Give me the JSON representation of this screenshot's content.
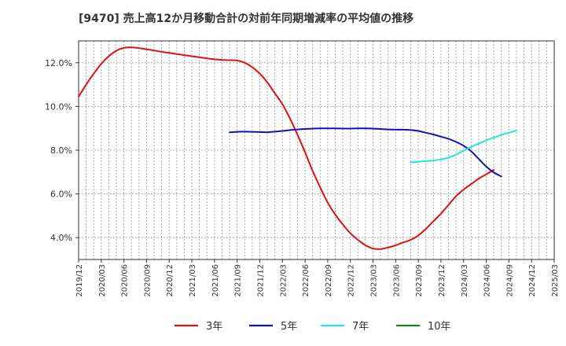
{
  "chart_data": {
    "type": "line",
    "title": "[9470]  売上高12か月移動合計の対前年同期増減率の平均値の推移",
    "xlabel": "",
    "ylabel": "",
    "y_unit": "%",
    "ylim": [
      3.0,
      13.0
    ],
    "y_ticks": [
      "4.0%",
      "6.0%",
      "8.0%",
      "10.0%",
      "12.0%"
    ],
    "x_ticks": [
      "2019/12",
      "2020/03",
      "2020/06",
      "2020/09",
      "2020/12",
      "2021/03",
      "2021/06",
      "2021/09",
      "2021/12",
      "2022/03",
      "2022/06",
      "2022/09",
      "2022/12",
      "2023/03",
      "2023/06",
      "2023/09",
      "2023/12",
      "2024/03",
      "2024/06",
      "2024/09",
      "2024/12",
      "2025/03"
    ],
    "grid": "dashed, both axes",
    "legend_position": "bottom",
    "series": [
      {
        "name": "3年",
        "color": "#dd1111",
        "points": [
          [
            "2019/12",
            10.45
          ],
          [
            "2020/01",
            11.0
          ],
          [
            "2020/02",
            11.5
          ],
          [
            "2020/03",
            11.95
          ],
          [
            "2020/04",
            12.3
          ],
          [
            "2020/05",
            12.55
          ],
          [
            "2020/06",
            12.68
          ],
          [
            "2020/07",
            12.7
          ],
          [
            "2020/08",
            12.67
          ],
          [
            "2020/09",
            12.62
          ],
          [
            "2020/10",
            12.56
          ],
          [
            "2020/11",
            12.5
          ],
          [
            "2020/12",
            12.45
          ],
          [
            "2021/01",
            12.4
          ],
          [
            "2021/02",
            12.35
          ],
          [
            "2021/03",
            12.3
          ],
          [
            "2021/04",
            12.25
          ],
          [
            "2021/05",
            12.2
          ],
          [
            "2021/06",
            12.16
          ],
          [
            "2021/07",
            12.13
          ],
          [
            "2021/08",
            12.12
          ],
          [
            "2021/09",
            12.1
          ],
          [
            "2021/10",
            12.0
          ],
          [
            "2021/11",
            11.8
          ],
          [
            "2021/12",
            11.5
          ],
          [
            "2022/01",
            11.1
          ],
          [
            "2022/02",
            10.6
          ],
          [
            "2022/03",
            10.1
          ],
          [
            "2022/04",
            9.45
          ],
          [
            "2022/05",
            8.7
          ],
          [
            "2022/06",
            7.9
          ],
          [
            "2022/07",
            7.05
          ],
          [
            "2022/08",
            6.3
          ],
          [
            "2022/09",
            5.6
          ],
          [
            "2022/10",
            5.05
          ],
          [
            "2022/11",
            4.6
          ],
          [
            "2022/12",
            4.2
          ],
          [
            "2023/01",
            3.9
          ],
          [
            "2023/02",
            3.65
          ],
          [
            "2023/03",
            3.5
          ],
          [
            "2023/04",
            3.48
          ],
          [
            "2023/05",
            3.55
          ],
          [
            "2023/06",
            3.65
          ],
          [
            "2023/07",
            3.78
          ],
          [
            "2023/08",
            3.9
          ],
          [
            "2023/09",
            4.1
          ],
          [
            "2023/10",
            4.4
          ],
          [
            "2023/11",
            4.75
          ],
          [
            "2023/12",
            5.1
          ],
          [
            "2024/01",
            5.5
          ],
          [
            "2024/02",
            5.9
          ],
          [
            "2024/03",
            6.2
          ],
          [
            "2024/04",
            6.45
          ],
          [
            "2024/05",
            6.7
          ],
          [
            "2024/06",
            6.9
          ],
          [
            "2024/07",
            7.1
          ]
        ]
      },
      {
        "name": "5年",
        "color": "#1111bb",
        "points": [
          [
            "2021/08",
            8.82
          ],
          [
            "2021/09",
            8.84
          ],
          [
            "2021/10",
            8.85
          ],
          [
            "2021/11",
            8.84
          ],
          [
            "2021/12",
            8.83
          ],
          [
            "2022/01",
            8.82
          ],
          [
            "2022/02",
            8.85
          ],
          [
            "2022/03",
            8.88
          ],
          [
            "2022/04",
            8.92
          ],
          [
            "2022/05",
            8.95
          ],
          [
            "2022/06",
            8.97
          ],
          [
            "2022/07",
            8.99
          ],
          [
            "2022/08",
            9.0
          ],
          [
            "2022/09",
            9.0
          ],
          [
            "2022/10",
            9.0
          ],
          [
            "2022/11",
            8.99
          ],
          [
            "2022/12",
            8.99
          ],
          [
            "2023/01",
            9.0
          ],
          [
            "2023/02",
            9.0
          ],
          [
            "2023/03",
            8.99
          ],
          [
            "2023/04",
            8.97
          ],
          [
            "2023/05",
            8.95
          ],
          [
            "2023/06",
            8.94
          ],
          [
            "2023/07",
            8.94
          ],
          [
            "2023/08",
            8.92
          ],
          [
            "2023/09",
            8.88
          ],
          [
            "2023/10",
            8.8
          ],
          [
            "2023/11",
            8.72
          ],
          [
            "2023/12",
            8.62
          ],
          [
            "2024/01",
            8.52
          ],
          [
            "2024/02",
            8.38
          ],
          [
            "2024/03",
            8.2
          ],
          [
            "2024/04",
            7.95
          ],
          [
            "2024/05",
            7.6
          ],
          [
            "2024/06",
            7.25
          ],
          [
            "2024/07",
            6.98
          ],
          [
            "2024/08",
            6.8
          ]
        ]
      },
      {
        "name": "7年",
        "color": "#22e5e5",
        "points": [
          [
            "2023/08",
            7.45
          ],
          [
            "2023/09",
            7.47
          ],
          [
            "2023/10",
            7.5
          ],
          [
            "2023/11",
            7.53
          ],
          [
            "2023/12",
            7.58
          ],
          [
            "2024/01",
            7.66
          ],
          [
            "2024/02",
            7.8
          ],
          [
            "2024/03",
            7.98
          ],
          [
            "2024/04",
            8.15
          ],
          [
            "2024/05",
            8.3
          ],
          [
            "2024/06",
            8.45
          ],
          [
            "2024/07",
            8.58
          ],
          [
            "2024/08",
            8.7
          ],
          [
            "2024/09",
            8.8
          ],
          [
            "2024/10",
            8.9
          ]
        ]
      },
      {
        "name": "10年",
        "color": "#118811",
        "points": []
      }
    ]
  }
}
